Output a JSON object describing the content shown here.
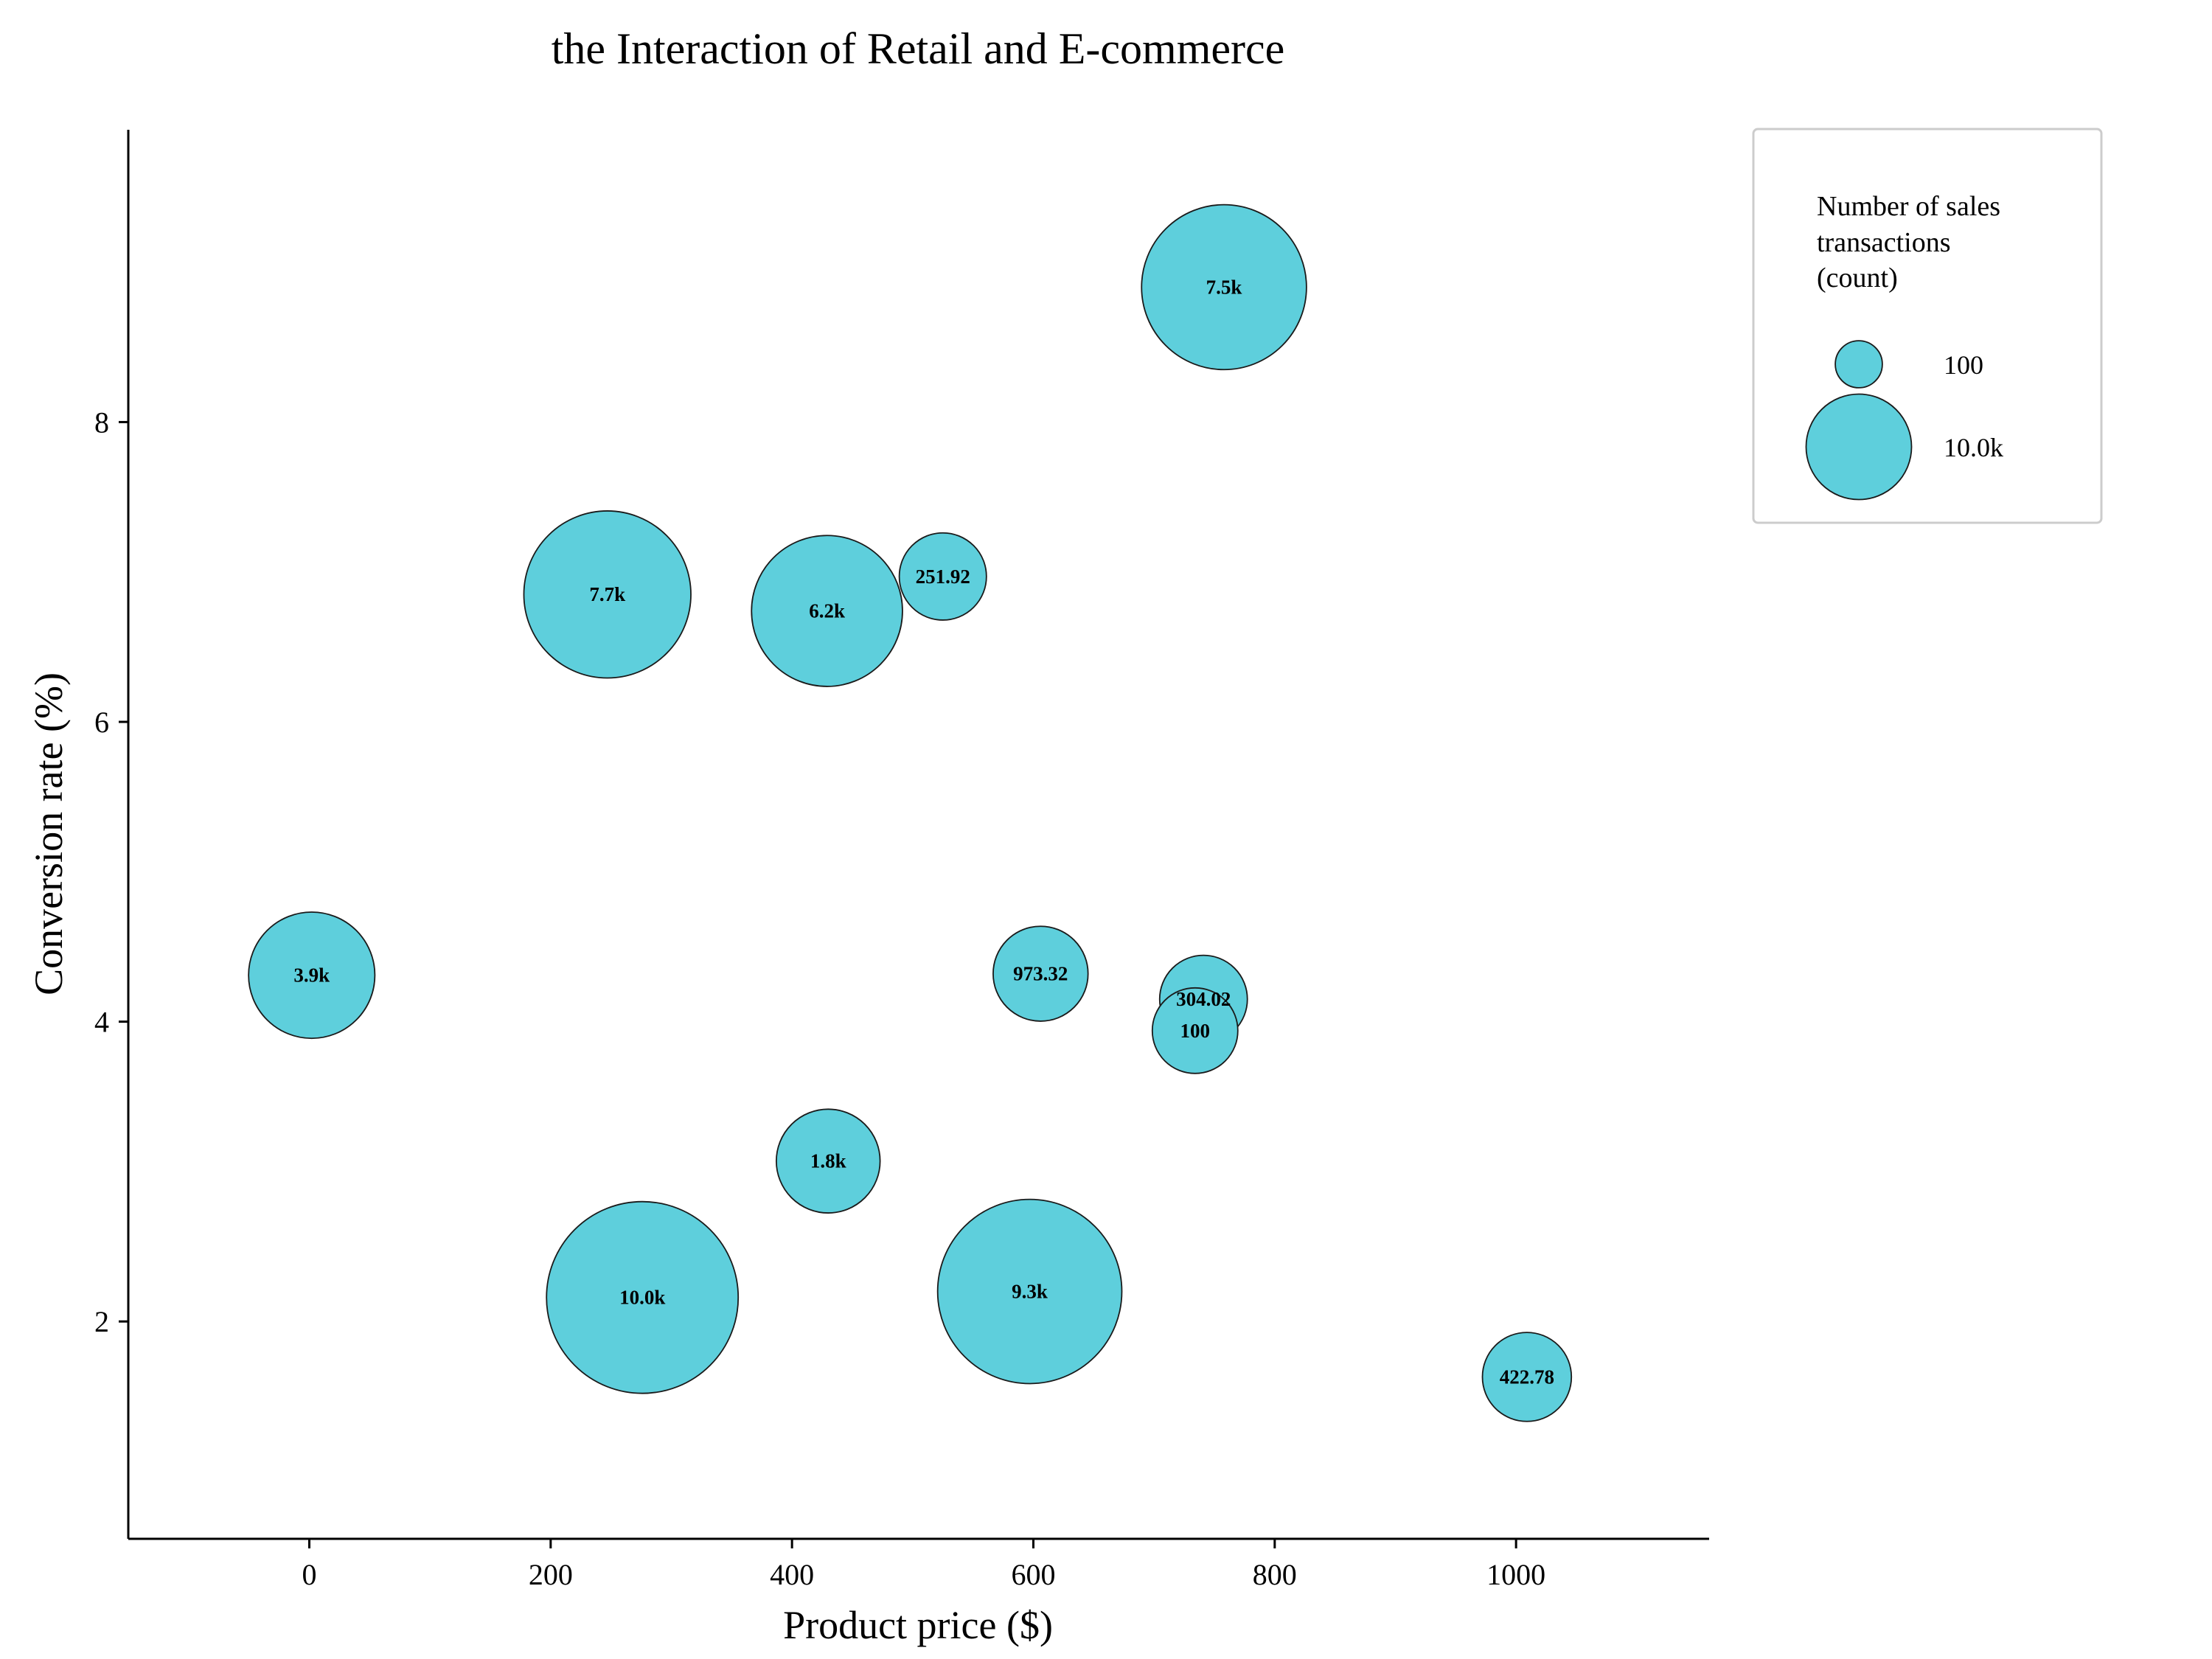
{
  "chart_data": {
    "type": "scatter",
    "title": "the Interaction of Retail and E-commerce",
    "xlabel": "Product price ($)",
    "ylabel": "Conversion rate (%)",
    "xlim": [
      -150,
      1160
    ],
    "ylim": [
      0.55,
      9.95
    ],
    "xticks": [
      0,
      200,
      400,
      600,
      800,
      1000
    ],
    "yticks": [
      2,
      4,
      6,
      8
    ],
    "bubble_color": "#5ecfdc",
    "bubble_edge_color": "#1a1a1a",
    "grid": false,
    "legend_position": "right",
    "legend": {
      "title_lines": [
        "Number of sales",
        "transactions",
        "(count)"
      ],
      "entries": [
        {
          "label": "100",
          "size": 100
        },
        {
          "label": "10.0k",
          "size": 10000
        }
      ]
    },
    "points": [
      {
        "x": 758,
        "y": 8.9,
        "size": 7500,
        "label": "7.5k"
      },
      {
        "x": 247,
        "y": 6.85,
        "size": 7700,
        "label": "7.7k"
      },
      {
        "x": 429,
        "y": 6.74,
        "size": 6200,
        "label": "6.2k"
      },
      {
        "x": 525,
        "y": 6.97,
        "size": 251.92,
        "label": "251.92"
      },
      {
        "x": 2,
        "y": 4.31,
        "size": 3900,
        "label": "3.9k"
      },
      {
        "x": 606,
        "y": 4.32,
        "size": 973.32,
        "label": "973.32"
      },
      {
        "x": 741,
        "y": 4.15,
        "size": 304.02,
        "label": "304.02"
      },
      {
        "x": 734,
        "y": 3.94,
        "size": 100,
        "label": "100"
      },
      {
        "x": 430,
        "y": 3.07,
        "size": 1800,
        "label": "1.8k"
      },
      {
        "x": 276,
        "y": 2.16,
        "size": 10000,
        "label": "10.0k"
      },
      {
        "x": 597,
        "y": 2.2,
        "size": 9300,
        "label": "9.3k"
      },
      {
        "x": 1009,
        "y": 1.63,
        "size": 422.78,
        "label": "422.78"
      }
    ]
  }
}
